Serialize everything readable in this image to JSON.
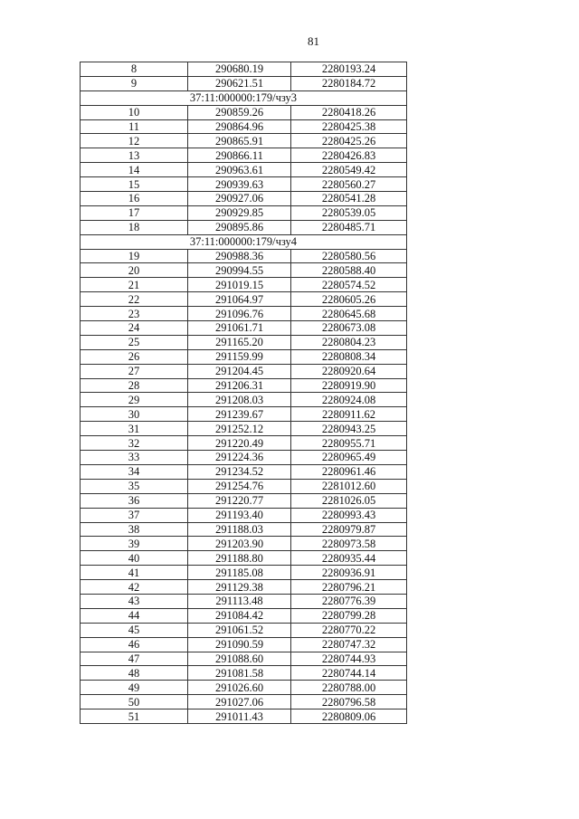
{
  "page_number": "81",
  "rows": [
    {
      "n": "8",
      "x": "290680.19",
      "y": "2280193.24"
    },
    {
      "n": "9",
      "x": "290621.51",
      "y": "2280184.72"
    },
    {
      "group": "37:11:000000:179/чзу3"
    },
    {
      "n": "10",
      "x": "290859.26",
      "y": "2280418.26"
    },
    {
      "n": "11",
      "x": "290864.96",
      "y": "2280425.38"
    },
    {
      "n": "12",
      "x": "290865.91",
      "y": "2280425.26"
    },
    {
      "n": "13",
      "x": "290866.11",
      "y": "2280426.83"
    },
    {
      "n": "14",
      "x": "290963.61",
      "y": "2280549.42"
    },
    {
      "n": "15",
      "x": "290939.63",
      "y": "2280560.27"
    },
    {
      "n": "16",
      "x": "290927.06",
      "y": "2280541.28"
    },
    {
      "n": "17",
      "x": "290929.85",
      "y": "2280539.05"
    },
    {
      "n": "18",
      "x": "290895.86",
      "y": "2280485.71"
    },
    {
      "group": "37:11:000000:179/чзу4"
    },
    {
      "n": "19",
      "x": "290988.36",
      "y": "2280580.56"
    },
    {
      "n": "20",
      "x": "290994.55",
      "y": "2280588.40"
    },
    {
      "n": "21",
      "x": "291019.15",
      "y": "2280574.52"
    },
    {
      "n": "22",
      "x": "291064.97",
      "y": "2280605.26"
    },
    {
      "n": "23",
      "x": "291096.76",
      "y": "2280645.68"
    },
    {
      "n": "24",
      "x": "291061.71",
      "y": "2280673.08"
    },
    {
      "n": "25",
      "x": "291165.20",
      "y": "2280804.23"
    },
    {
      "n": "26",
      "x": "291159.99",
      "y": "2280808.34"
    },
    {
      "n": "27",
      "x": "291204.45",
      "y": "2280920.64"
    },
    {
      "n": "28",
      "x": "291206.31",
      "y": "2280919.90"
    },
    {
      "n": "29",
      "x": "291208.03",
      "y": "2280924.08"
    },
    {
      "n": "30",
      "x": "291239.67",
      "y": "2280911.62"
    },
    {
      "n": "31",
      "x": "291252.12",
      "y": "2280943.25"
    },
    {
      "n": "32",
      "x": "291220.49",
      "y": "2280955.71"
    },
    {
      "n": "33",
      "x": "291224.36",
      "y": "2280965.49"
    },
    {
      "n": "34",
      "x": "291234.52",
      "y": "2280961.46"
    },
    {
      "n": "35",
      "x": "291254.76",
      "y": "2281012.60"
    },
    {
      "n": "36",
      "x": "291220.77",
      "y": "2281026.05"
    },
    {
      "n": "37",
      "x": "291193.40",
      "y": "2280993.43"
    },
    {
      "n": "38",
      "x": "291188.03",
      "y": "2280979.87"
    },
    {
      "n": "39",
      "x": "291203.90",
      "y": "2280973.58"
    },
    {
      "n": "40",
      "x": "291188.80",
      "y": "2280935.44"
    },
    {
      "n": "41",
      "x": "291185.08",
      "y": "2280936.91"
    },
    {
      "n": "42",
      "x": "291129.38",
      "y": "2280796.21"
    },
    {
      "n": "43",
      "x": "291113.48",
      "y": "2280776.39"
    },
    {
      "n": "44",
      "x": "291084.42",
      "y": "2280799.28"
    },
    {
      "n": "45",
      "x": "291061.52",
      "y": "2280770.22"
    },
    {
      "n": "46",
      "x": "291090.59",
      "y": "2280747.32"
    },
    {
      "n": "47",
      "x": "291088.60",
      "y": "2280744.93"
    },
    {
      "n": "48",
      "x": "291081.58",
      "y": "2280744.14"
    },
    {
      "n": "49",
      "x": "291026.60",
      "y": "2280788.00"
    },
    {
      "n": "50",
      "x": "291027.06",
      "y": "2280796.58"
    },
    {
      "n": "51",
      "x": "291011.43",
      "y": "2280809.06"
    }
  ]
}
